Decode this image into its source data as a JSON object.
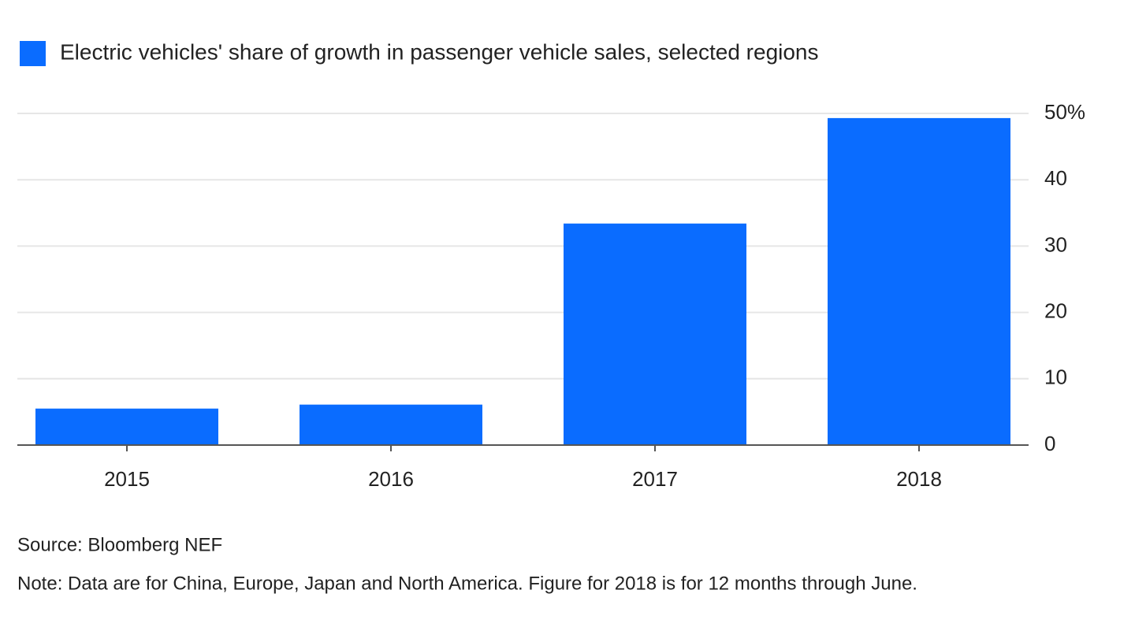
{
  "chart_data": {
    "type": "bar",
    "categories": [
      "2015",
      "2016",
      "2017",
      "2018"
    ],
    "series": [
      {
        "name": "Electric vehicles' share of growth in passenger vehicle sales, selected regions",
        "color": "#0a6cff",
        "values": [
          5.5,
          6.1,
          33.4,
          49.3
        ]
      }
    ],
    "ylim": [
      0,
      50
    ],
    "yticks": [
      0,
      10,
      20,
      30,
      40,
      {
        "value": 50,
        "label": "50%"
      }
    ],
    "grid": true,
    "source": "Source: Bloomberg NEF",
    "note": "Note: Data are for China, Europe, Japan and North America. Figure for 2018 is for 12 months through June."
  }
}
